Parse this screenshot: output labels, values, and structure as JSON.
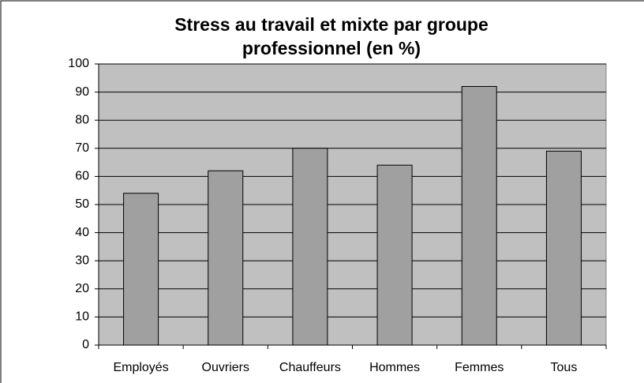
{
  "chart_data": {
    "type": "bar",
    "title": "Stress au travail et mixte par groupe professionnel (en %)",
    "categories": [
      "Employés",
      "Ouvriers",
      "Chauffeurs",
      "Hommes",
      "Femmes",
      "Tous"
    ],
    "values": [
      54,
      62,
      70,
      64,
      92,
      69
    ],
    "color": "#a0a0a0",
    "ylim": [
      0,
      100
    ],
    "yticks": [
      0,
      10,
      20,
      30,
      40,
      50,
      60,
      70,
      80,
      90,
      100
    ],
    "grid": true
  }
}
